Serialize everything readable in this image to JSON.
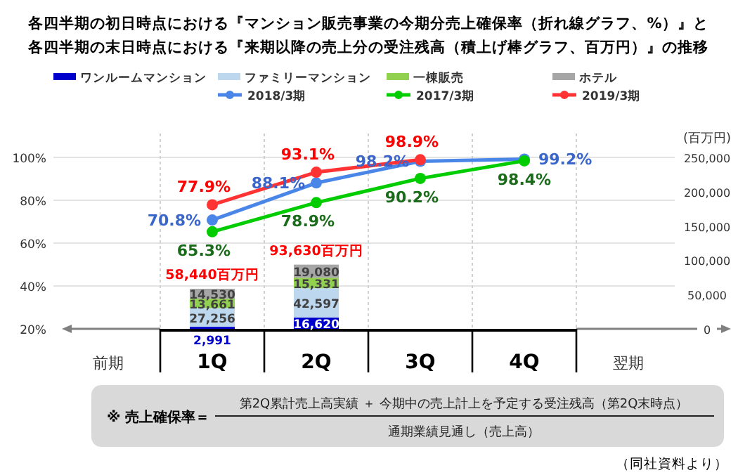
{
  "chart_data": {
    "type": "bar",
    "stacked": true,
    "title": "各四半期の初日時点における『マンション販売事業の今期分売上確保率（折れ線グラフ、%）』と",
    "subtitle": "各四半期の末日時点における『来期以降の売上分の受注残高（積上げ棒グラフ、百万円）』の推移",
    "y2label": "(百万円)",
    "categories": [
      "前期",
      "1Q",
      "2Q",
      "3Q",
      "4Q",
      "翌期"
    ],
    "series": [
      {
        "name": "ワンルームマンション",
        "color": "#0000cc",
        "axis": "y2",
        "values": [
          null,
          2991,
          16620,
          null,
          null,
          null
        ],
        "value_labels": [
          null,
          "2,991",
          "16,620",
          null,
          null,
          null
        ]
      },
      {
        "name": "ファミリーマンション",
        "color": "#bdd7ee",
        "axis": "y2",
        "values": [
          null,
          27256,
          42597,
          null,
          null,
          null
        ],
        "value_labels": [
          null,
          "27,256",
          "42,597",
          null,
          null,
          null
        ]
      },
      {
        "name": "一棟販売",
        "color": "#92d050",
        "axis": "y2",
        "values": [
          null,
          13661,
          15331,
          null,
          null,
          null
        ],
        "value_labels": [
          null,
          "13,661",
          "15,331",
          null,
          null,
          null
        ]
      },
      {
        "name": "ホテル",
        "color": "#a6a6a6",
        "axis": "y2",
        "values": [
          null,
          14530,
          19080,
          null,
          null,
          null
        ],
        "value_labels": [
          null,
          "14,530",
          "19,080",
          null,
          null,
          null
        ]
      },
      {
        "name": "2018/3期",
        "type": "line",
        "color": "#4a86e8",
        "values": [
          null,
          70.8,
          88.1,
          98.2,
          99.2,
          null
        ],
        "value_labels": [
          null,
          "70.8%",
          "88.1%",
          "98.2%",
          "99.2%",
          null
        ]
      },
      {
        "name": "2017/3期",
        "type": "line",
        "color": "#00cc00",
        "values": [
          null,
          65.3,
          78.9,
          90.2,
          98.4,
          null
        ],
        "value_labels": [
          null,
          "65.3%",
          "78.9%",
          "90.2%",
          "98.4%",
          null
        ]
      },
      {
        "name": "2019/3期",
        "type": "line",
        "color": "#ff3333",
        "values": [
          null,
          77.9,
          93.1,
          98.9,
          null,
          null
        ],
        "value_labels": [
          null,
          "77.9%",
          "93.1%",
          "98.9%",
          null,
          null
        ]
      }
    ],
    "totals": [
      null,
      "58,440百万円",
      "93,630百万円",
      null,
      null,
      null
    ],
    "ylim": [
      20,
      100
    ],
    "yticks": [
      {
        "value": 20,
        "label": "20%"
      },
      {
        "value": 40,
        "label": "40%"
      },
      {
        "value": 60,
        "label": "60%"
      },
      {
        "value": 80,
        "label": "80%"
      },
      {
        "value": 100,
        "label": "100%"
      }
    ],
    "y2lim": [
      0,
      250000
    ],
    "y2ticks": [
      0,
      {
        "value": 50000,
        "label": "50,000"
      },
      {
        "value": 100000,
        "label": "100,000"
      },
      {
        "value": 150000,
        "label": "150,000"
      },
      {
        "value": 200000,
        "label": "200,000"
      },
      {
        "value": 250000,
        "label": "250,000"
      }
    ],
    "grid": true,
    "marker": "circle",
    "legend": "top",
    "annotations": [
      "※ 売上確保率＝",
      "第2Q累計売上高実績 ＋ 今期中の売上計上を予定する受注残高（第2Q末時点）",
      "通期業績見通し（売上高）",
      "（同社資料より）"
    ]
  }
}
